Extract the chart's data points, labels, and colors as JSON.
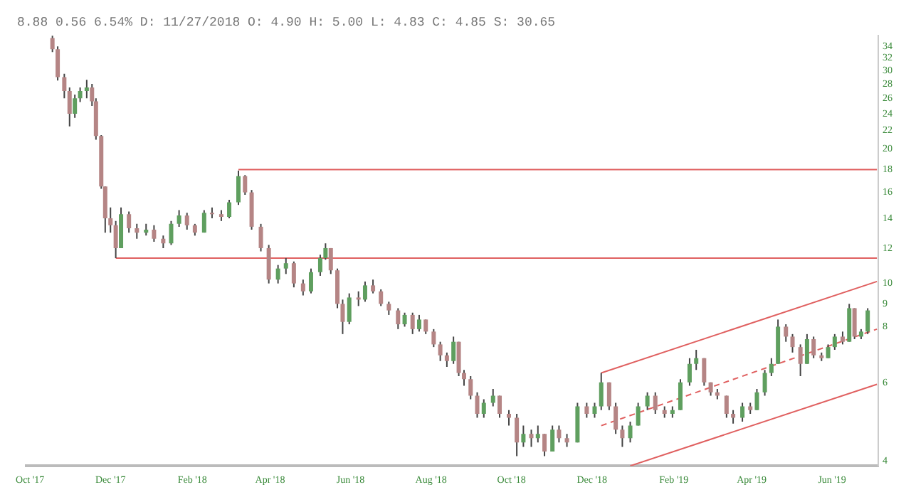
{
  "chart_data": {
    "type": "candlestick",
    "title": "8.88 0.56 6.54% D: 11/27/2018 O: 4.90 H: 5.00 L: 4.83 C: 4.85 S: 30.65",
    "colors": [
      "#b58585",
      "#b58585",
      "#b58585",
      "#b58585",
      "#5f9f5f",
      "#5f9f5f",
      "#5f9f5f",
      "#b58585",
      "#b58585",
      "#b58585",
      "#b58585",
      "#b58585",
      "#b58585",
      "#5f9f5f",
      "#b58585",
      "#b58585",
      "#5f9f5f",
      "#b58585",
      "#b58585",
      "#5f9f5f",
      "#5f9f5f",
      "#b58585",
      "#b58585",
      "#5f9f5f",
      "#b58585",
      "#b58585",
      "#5f9f5f",
      "#5f9f5f",
      "#b58585",
      "#b58585",
      "#b58585",
      "#b58585",
      "#5f9f5f",
      "#5f9f5f",
      "#b58585",
      "#b58585",
      "#5f9f5f",
      "#5f9f5f",
      "#5f9f5f",
      "#b58585",
      "#b58585",
      "#b58585",
      "#5f9f5f",
      "#b58585",
      "#5f9f5f",
      "#b58585",
      "#b58585",
      "#b58585",
      "#b58585",
      "#5f9f5f",
      "#b58585",
      "#5f9f5f",
      "#b58585",
      "#b58585",
      "#b58585",
      "#b58585",
      "#5f9f5f",
      "#b58585",
      "#b58585",
      "#b58585",
      "#b58585",
      "#5f9f5f",
      "#5f9f5f",
      "#b58585",
      "#b58585",
      "#b58585",
      "#5f9f5f",
      "#b58585",
      "#5f9f5f",
      "#b58585",
      "#5f9f5f",
      "#b58585",
      "#b58585",
      "#5f9f5f",
      "#b58585",
      "#5f9f5f",
      "#5f9f5f",
      "#b58585",
      "#b58585",
      "#b58585",
      "#5f9f5f",
      "#5f9f5f",
      "#5f9f5f",
      "#b58585",
      "#b58585",
      "#5f9f5f",
      "#5f9f5f",
      "#5f9f5f",
      "#5f9f5f",
      "#b58585",
      "#b58585",
      "#b58585",
      "#b58585",
      "#b58585",
      "#5f9f5f",
      "#b58585",
      "#5f9f5f",
      "#5f9f5f",
      "#5f9f5f",
      "#5f9f5f",
      "#b58585",
      "#b58585",
      "#b58585",
      "#5f9f5f",
      "#b58585",
      "#b58585",
      "#5f9f5f",
      "#5f9f5f",
      "#b58585",
      "#5f9f5f",
      "#b58585",
      "#5f9f5f",
      "#5f9f5f"
    ],
    "x": [
      "2017-10-18",
      "2017-10-22",
      "2017-10-27",
      "2017-10-31",
      "2017-11-04",
      "2017-11-08",
      "2017-11-13",
      "2017-11-17",
      "2017-11-20",
      "2017-11-24",
      "2017-11-27",
      "2017-12-01",
      "2017-12-05",
      "2017-12-09",
      "2017-12-15",
      "2017-12-21",
      "2017-12-28",
      "2018-01-03",
      "2018-01-10",
      "2018-01-16",
      "2018-01-22",
      "2018-01-28",
      "2018-02-03",
      "2018-02-10",
      "2018-02-16",
      "2018-02-23",
      "2018-03-01",
      "2018-03-08",
      "2018-03-13",
      "2018-03-18",
      "2018-03-25",
      "2018-03-31",
      "2018-04-07",
      "2018-04-13",
      "2018-04-19",
      "2018-04-26",
      "2018-05-02",
      "2018-05-09",
      "2018-05-13",
      "2018-05-17",
      "2018-05-22",
      "2018-05-26",
      "2018-05-31",
      "2018-06-07",
      "2018-06-12",
      "2018-06-18",
      "2018-06-24",
      "2018-06-30",
      "2018-07-07",
      "2018-07-12",
      "2018-07-18",
      "2018-07-23",
      "2018-07-28",
      "2018-08-03",
      "2018-08-08",
      "2018-08-13",
      "2018-08-18",
      "2018-08-22",
      "2018-08-26",
      "2018-08-31",
      "2018-09-05",
      "2018-09-10",
      "2018-09-17",
      "2018-09-22",
      "2018-09-29",
      "2018-10-05",
      "2018-10-10",
      "2018-10-16",
      "2018-10-21",
      "2018-10-26",
      "2018-11-01",
      "2018-11-06",
      "2018-11-12",
      "2018-11-20",
      "2018-11-27",
      "2018-12-03",
      "2018-12-08",
      "2018-12-14",
      "2018-12-19",
      "2018-12-24",
      "2018-12-30",
      "2019-01-05",
      "2019-01-12",
      "2019-01-18",
      "2019-01-25",
      "2019-01-31",
      "2019-02-06",
      "2019-02-13",
      "2019-02-18",
      "2019-02-24",
      "2019-03-01",
      "2019-03-06",
      "2019-03-13",
      "2019-03-18",
      "2019-03-25",
      "2019-03-31",
      "2019-04-05",
      "2019-04-11",
      "2019-04-16",
      "2019-04-21",
      "2019-04-27",
      "2019-05-02",
      "2019-05-08",
      "2019-05-13",
      "2019-05-18",
      "2019-05-24",
      "2019-05-29",
      "2019-06-03",
      "2019-06-09",
      "2019-06-14",
      "2019-06-18",
      "2019-06-23",
      "2019-06-28"
    ],
    "ohlc": [
      [
        35.5,
        35.9,
        33,
        33.5
      ],
      [
        33.5,
        34,
        28.5,
        29
      ],
      [
        29,
        29.5,
        26,
        27
      ],
      [
        27,
        27.5,
        22.5,
        24
      ],
      [
        24,
        26.5,
        23.5,
        26
      ],
      [
        26,
        27.5,
        25.5,
        27
      ],
      [
        27,
        28.6,
        26,
        27.5
      ],
      [
        27.5,
        28,
        25,
        25.6
      ],
      [
        25.6,
        26,
        21,
        21.4
      ],
      [
        21.4,
        21.5,
        16.3,
        16.5
      ],
      [
        16.5,
        16.5,
        13,
        14
      ],
      [
        14,
        14.8,
        13,
        13.5
      ],
      [
        13.5,
        13.8,
        11.4,
        12
      ],
      [
        12,
        14.8,
        12,
        14.3
      ],
      [
        14.3,
        14.5,
        13,
        13.3
      ],
      [
        13.3,
        13.6,
        12.6,
        13
      ],
      [
        13,
        13.6,
        12.8,
        13.2
      ],
      [
        13.2,
        13.5,
        12.4,
        12.6
      ],
      [
        12.6,
        12.8,
        12,
        12.3
      ],
      [
        12.3,
        13.8,
        12.2,
        13.6
      ],
      [
        13.6,
        14.6,
        13.4,
        14.2
      ],
      [
        14.2,
        14.4,
        13.2,
        13.5
      ],
      [
        13.5,
        13.6,
        12.8,
        13
      ],
      [
        13,
        14.6,
        13,
        14.4
      ],
      [
        14.4,
        14.8,
        14,
        14.3
      ],
      [
        14.3,
        14.6,
        13.8,
        14.1
      ],
      [
        14.1,
        15.4,
        14,
        15.2
      ],
      [
        15.2,
        17.9,
        15,
        17.4
      ],
      [
        17.4,
        17.5,
        15.8,
        16
      ],
      [
        16,
        16.2,
        13.2,
        13.4
      ],
      [
        13.4,
        13.6,
        11.8,
        12
      ],
      [
        12,
        12.2,
        10,
        10.2
      ],
      [
        10.2,
        11,
        10,
        10.8
      ],
      [
        10.8,
        11.4,
        10.5,
        11.1
      ],
      [
        11.1,
        11.2,
        9.8,
        10
      ],
      [
        10,
        10.2,
        9.4,
        9.6
      ],
      [
        9.6,
        10.8,
        9.5,
        10.6
      ],
      [
        10.6,
        11.6,
        10.4,
        11.4
      ],
      [
        11.4,
        12.3,
        11.3,
        12
      ],
      [
        12,
        12,
        10.5,
        10.7
      ],
      [
        10.7,
        10.8,
        8.8,
        9
      ],
      [
        9,
        9.2,
        7.7,
        8.2
      ],
      [
        8.2,
        9.5,
        8.1,
        9.3
      ],
      [
        9.3,
        9.6,
        8.9,
        9.2
      ],
      [
        9.2,
        10.1,
        9.1,
        9.9
      ],
      [
        9.9,
        10.2,
        9.5,
        9.6
      ],
      [
        9.6,
        9.7,
        8.9,
        9
      ],
      [
        9,
        9.1,
        8.5,
        8.7
      ],
      [
        8.7,
        8.8,
        7.9,
        8.1
      ],
      [
        8.1,
        8.6,
        8,
        8.5
      ],
      [
        8.5,
        8.6,
        7.7,
        7.9
      ],
      [
        7.9,
        8.5,
        7.8,
        8.3
      ],
      [
        8.3,
        8.3,
        7.7,
        7.8
      ],
      [
        7.8,
        7.9,
        7.2,
        7.3
      ],
      [
        7.3,
        7.4,
        6.7,
        6.9
      ],
      [
        6.9,
        7,
        6.5,
        6.7
      ],
      [
        6.7,
        7.6,
        6.6,
        7.4
      ],
      [
        7.4,
        7.4,
        6.2,
        6.3
      ],
      [
        6.3,
        6.4,
        5.9,
        6.1
      ],
      [
        6.1,
        6.2,
        5.5,
        5.6
      ],
      [
        5.6,
        5.7,
        5,
        5.1
      ],
      [
        5.1,
        5.5,
        5,
        5.4
      ],
      [
        5.4,
        5.8,
        5.3,
        5.6
      ],
      [
        5.6,
        5.6,
        5,
        5.1
      ],
      [
        5.1,
        5.2,
        4.8,
        5
      ],
      [
        5,
        5.1,
        4.1,
        4.4
      ],
      [
        4.4,
        4.8,
        4.3,
        4.6
      ],
      [
        4.6,
        4.7,
        4.3,
        4.5
      ],
      [
        4.5,
        4.8,
        4.4,
        4.6
      ],
      [
        4.6,
        4.6,
        4.1,
        4.2
      ],
      [
        4.2,
        4.8,
        4.2,
        4.7
      ],
      [
        4.7,
        4.8,
        4.4,
        4.5
      ],
      [
        4.5,
        4.6,
        4.3,
        4.4
      ],
      [
        4.4,
        5.4,
        4.4,
        5.3
      ],
      [
        5.3,
        5.4,
        5,
        5.1
      ],
      [
        5.1,
        5.4,
        5,
        5.3
      ],
      [
        5.3,
        6.3,
        5.2,
        6
      ],
      [
        6,
        6,
        5.2,
        5.3
      ],
      [
        5.3,
        5.4,
        4.6,
        4.7
      ],
      [
        4.7,
        4.8,
        4.3,
        4.5
      ],
      [
        4.5,
        4.9,
        4.4,
        4.8
      ],
      [
        4.8,
        5.4,
        4.8,
        5.3
      ],
      [
        5.3,
        5.7,
        5.2,
        5.6
      ],
      [
        5.6,
        5.7,
        5.1,
        5.2
      ],
      [
        5.2,
        5.3,
        5,
        5.1
      ],
      [
        5.1,
        5.3,
        5,
        5.2
      ],
      [
        5.2,
        6.1,
        5.2,
        6
      ],
      [
        6,
        6.8,
        5.9,
        6.6
      ],
      [
        6.6,
        7.1,
        6.4,
        6.8
      ],
      [
        6.8,
        6.8,
        5.9,
        6
      ],
      [
        6,
        6,
        5.6,
        5.7
      ],
      [
        5.7,
        5.8,
        5.5,
        5.6
      ],
      [
        5.6,
        5.6,
        5,
        5.1
      ],
      [
        5.1,
        5.2,
        4.85,
        5
      ],
      [
        5,
        5.4,
        4.9,
        5.3
      ],
      [
        5.3,
        5.4,
        5.1,
        5.2
      ],
      [
        5.2,
        5.8,
        5.2,
        5.7
      ],
      [
        5.7,
        6.4,
        5.6,
        6.3
      ],
      [
        6.3,
        6.8,
        6.2,
        6.6
      ],
      [
        6.6,
        8.3,
        6.6,
        8
      ],
      [
        8,
        8.1,
        7.4,
        7.6
      ],
      [
        7.6,
        7.7,
        7,
        7.2
      ],
      [
        7.2,
        7.3,
        6.2,
        6.6
      ],
      [
        6.6,
        7.7,
        6.6,
        7.5
      ],
      [
        7.5,
        7.6,
        6.8,
        6.9
      ],
      [
        6.9,
        7,
        6.7,
        6.8
      ],
      [
        6.8,
        7.3,
        6.8,
        7.2
      ],
      [
        7.2,
        7.7,
        7.1,
        7.6
      ],
      [
        7.6,
        7.8,
        7.3,
        7.4
      ],
      [
        7.4,
        9,
        7.4,
        8.8
      ],
      [
        8.8,
        8.8,
        7.5,
        7.6
      ],
      [
        7.6,
        7.9,
        7.5,
        7.8
      ],
      [
        7.8,
        8.8,
        7.7,
        8.7
      ]
    ],
    "series": [
      {
        "type": "line",
        "x": [
          "2018-03-08",
          "2019-07-05"
        ],
        "values": [
          18,
          18
        ],
        "color": "#e06060"
      },
      {
        "type": "line",
        "x": [
          "2017-12-05",
          "2019-07-05"
        ],
        "values": [
          11.4,
          11.4
        ],
        "color": "#e06060"
      },
      {
        "type": "line",
        "x": [
          "2018-12-08",
          "2019-07-05"
        ],
        "values": [
          6.3,
          10.1
        ],
        "color": "#e06060"
      },
      {
        "type": "line",
        "x": [
          "2018-12-08",
          "2019-07-05"
        ],
        "values": [
          4.8,
          7.9
        ],
        "color": "#e06060",
        "line_style": "dashed"
      },
      {
        "type": "line",
        "x": [
          "2018-12-30",
          "2019-07-05"
        ],
        "values": [
          3.9,
          5.94
        ],
        "color": "#e06060"
      }
    ],
    "log": true,
    "xlim": [
      "2017-09-28",
      "2019-07-06"
    ],
    "xticks": [
      {
        "value": "2017-10-01",
        "label": "Oct '17"
      },
      {
        "value": "2017-12-01",
        "label": "Dec '17"
      },
      {
        "value": "2018-02-01",
        "label": "Feb '18"
      },
      {
        "value": "2018-04-01",
        "label": "Apr '18"
      },
      {
        "value": "2018-06-01",
        "label": "Jun '18"
      },
      {
        "value": "2018-08-01",
        "label": "Aug '18"
      },
      {
        "value": "2018-10-01",
        "label": "Oct '18"
      },
      {
        "value": "2018-12-01",
        "label": "Dec '18"
      },
      {
        "value": "2019-02-01",
        "label": "Feb '19"
      },
      {
        "value": "2019-04-01",
        "label": "Apr '19"
      },
      {
        "value": "2019-06-01",
        "label": "Jun '19"
      }
    ],
    "ylim": [
      3.9,
      36
    ],
    "yticks": [
      4,
      6,
      8,
      9,
      10,
      12,
      14,
      16,
      18,
      20,
      22,
      24,
      26,
      28,
      30,
      32,
      34
    ]
  }
}
